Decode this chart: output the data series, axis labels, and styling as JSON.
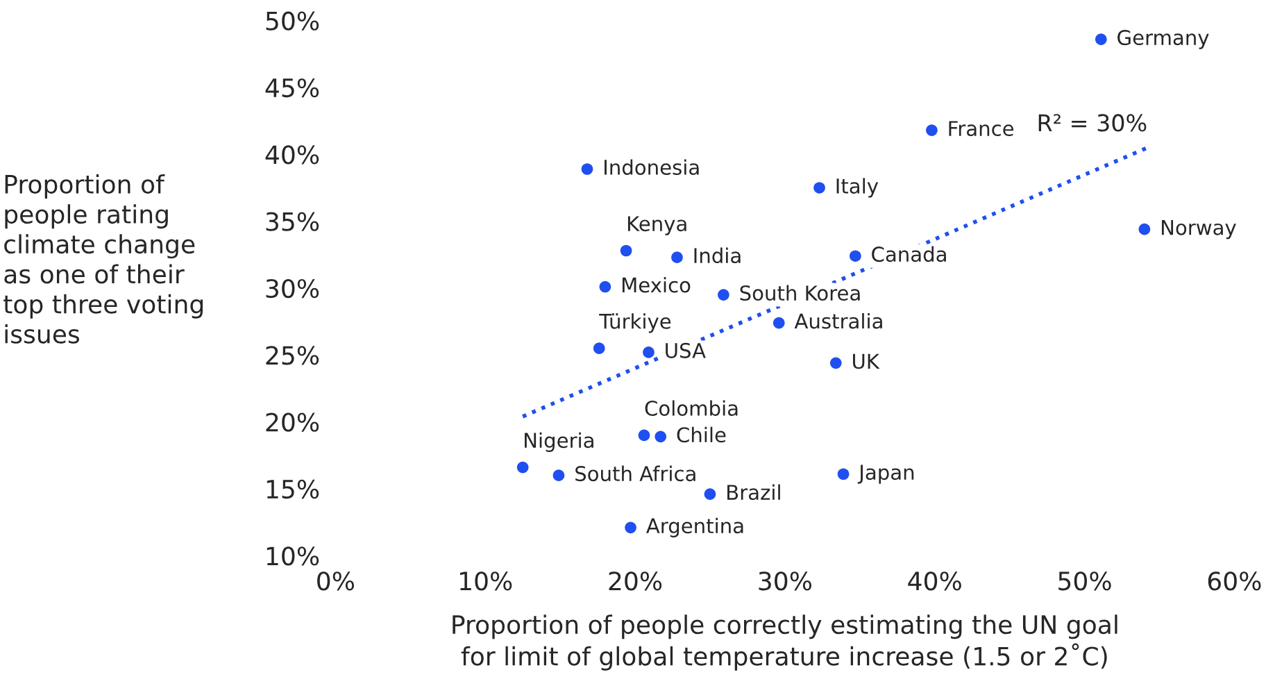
{
  "chart_data": {
    "type": "scatter",
    "xlabel": "Proportion of people correctly estimating the UN goal\nfor limit of global temperature increase (1.5 or 2˚C)",
    "ylabel": "Proportion of\npeople rating\nclimate change\nas one of their\ntop three voting\nissues",
    "xlim": [
      0,
      60
    ],
    "ylim": [
      10,
      50
    ],
    "xticks": [
      {
        "value": 0,
        "label": "0%"
      },
      {
        "value": 10,
        "label": "10%"
      },
      {
        "value": 20,
        "label": "20%"
      },
      {
        "value": 30,
        "label": "30%"
      },
      {
        "value": 40,
        "label": "40%"
      },
      {
        "value": 50,
        "label": "50%"
      },
      {
        "value": 60,
        "label": "60%"
      }
    ],
    "yticks": [
      {
        "value": 10,
        "label": "10%"
      },
      {
        "value": 15,
        "label": "15%"
      },
      {
        "value": 20,
        "label": "20%"
      },
      {
        "value": 25,
        "label": "25%"
      },
      {
        "value": 30,
        "label": "30%"
      },
      {
        "value": 35,
        "label": "35%"
      },
      {
        "value": 40,
        "label": "40%"
      },
      {
        "value": 45,
        "label": "45%"
      },
      {
        "value": 50,
        "label": "50%"
      }
    ],
    "grid": false,
    "legend": false,
    "series": [
      {
        "color": "#1f4ff0",
        "marker": "circle",
        "x": [
          51.1,
          39.8,
          16.8,
          32.3,
          54.0,
          19.4,
          22.8,
          34.7,
          18.0,
          25.9,
          29.6,
          17.6,
          20.9,
          33.4,
          20.6,
          21.7,
          12.5,
          14.9,
          33.9,
          25.0,
          19.7
        ],
        "values": [
          48.6,
          41.8,
          38.9,
          37.5,
          34.4,
          32.8,
          32.3,
          32.4,
          30.1,
          29.5,
          27.4,
          25.5,
          25.2,
          24.4,
          19.0,
          18.9,
          16.6,
          16.0,
          16.1,
          14.6,
          12.1
        ]
      },
      {
        "type": "line",
        "color": "#1f4ff0",
        "line_style": "dotted",
        "x": [
          12.5,
          54.2
        ],
        "values": [
          20.4,
          40.5
        ]
      }
    ],
    "annotations": [
      {
        "text": "Germany",
        "x": 51.1,
        "y": 48.6
      },
      {
        "text": "France",
        "x": 39.8,
        "y": 41.8
      },
      {
        "text": "Indonesia",
        "x": 16.8,
        "y": 38.9
      },
      {
        "text": "Italy",
        "x": 32.3,
        "y": 37.5
      },
      {
        "text": "Norway",
        "x": 54.0,
        "y": 34.4
      },
      {
        "text": "Kenya",
        "x": 19.4,
        "y": 32.8
      },
      {
        "text": "India",
        "x": 22.8,
        "y": 32.3
      },
      {
        "text": "Canada",
        "x": 34.7,
        "y": 32.4
      },
      {
        "text": "Mexico",
        "x": 18.0,
        "y": 30.1
      },
      {
        "text": "South Korea",
        "x": 25.9,
        "y": 29.5
      },
      {
        "text": "Australia",
        "x": 29.6,
        "y": 27.4
      },
      {
        "text": "Türkiye",
        "x": 17.6,
        "y": 25.5
      },
      {
        "text": "USA",
        "x": 20.9,
        "y": 25.2
      },
      {
        "text": "UK",
        "x": 33.4,
        "y": 24.4
      },
      {
        "text": "Colombia",
        "x": 20.6,
        "y": 19.0
      },
      {
        "text": "Chile",
        "x": 21.7,
        "y": 18.9
      },
      {
        "text": "Nigeria",
        "x": 12.5,
        "y": 16.6
      },
      {
        "text": "South Africa",
        "x": 14.9,
        "y": 16.0
      },
      {
        "text": "Japan",
        "x": 33.9,
        "y": 16.1
      },
      {
        "text": "Brazil",
        "x": 25.0,
        "y": 14.6
      },
      {
        "text": "Argentina",
        "x": 19.7,
        "y": 12.1
      },
      "R² = 30%"
    ]
  }
}
